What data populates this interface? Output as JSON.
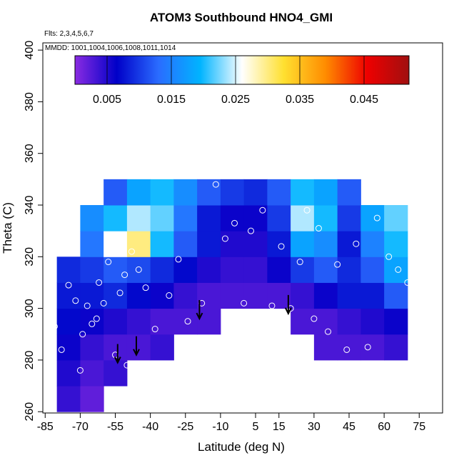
{
  "chart_data": {
    "type": "heatmap",
    "title": "ATOM3 Southbound HNO4_GMI",
    "subtitle": "Flts: 2,3,4,5,6,7",
    "annotation": "MMDD: 1001,1004,1006,1008,1011,1014",
    "x_label": "Latitude (deg N)",
    "y_label": "Theta (C)",
    "xlim": [
      -86,
      85
    ],
    "xticks": [
      -85,
      -70,
      -55,
      -40,
      -25,
      -10,
      5,
      15,
      30,
      45,
      60,
      75
    ],
    "ylim": [
      259.5,
      402.8
    ],
    "yticks": [
      260,
      280,
      300,
      320,
      340,
      360,
      380,
      400
    ],
    "clim": [
      0,
      0.052
    ],
    "cticks": [
      0.005,
      0.015,
      0.025,
      0.035,
      0.045
    ],
    "colormap": [
      "#8a2be2",
      "#0000c8",
      "#2a6cff",
      "#00b4ff",
      "#ffffff",
      "#ffe030",
      "#ff8c00",
      "#ee0000",
      "#a01010"
    ],
    "x_bins": [
      -80,
      -70,
      -60,
      -50,
      -40,
      -30,
      -20,
      -10,
      0,
      10,
      20,
      30,
      40,
      50,
      60,
      70
    ],
    "y_bins": [
      260,
      270,
      280,
      290,
      300,
      310,
      320,
      330,
      340,
      350
    ],
    "values": [
      [
        0.004,
        0.002,
        null,
        null,
        null,
        null,
        null,
        null,
        null,
        null,
        null,
        null,
        null,
        null,
        null
      ],
      [
        0.005,
        0.003,
        0.004,
        null,
        null,
        null,
        null,
        null,
        null,
        null,
        null,
        null,
        null,
        null,
        null
      ],
      [
        0.006,
        0.004,
        0.003,
        0.003,
        0.004,
        null,
        null,
        null,
        null,
        null,
        null,
        0.003,
        0.003,
        0.003,
        0.004
      ],
      [
        0.007,
        0.006,
        0.005,
        0.004,
        0.003,
        0.003,
        0.003,
        null,
        null,
        null,
        0.003,
        0.003,
        0.004,
        0.005,
        0.006
      ],
      [
        0.008,
        0.008,
        0.009,
        0.007,
        0.006,
        0.004,
        0.003,
        0.003,
        0.003,
        0.003,
        0.004,
        0.006,
        0.008,
        0.008,
        0.012
      ],
      [
        0.009,
        0.01,
        0.012,
        0.011,
        0.009,
        0.007,
        0.005,
        0.004,
        0.004,
        0.006,
        0.01,
        0.012,
        0.009,
        0.012,
        0.018
      ],
      [
        null,
        0.014,
        0.026,
        0.03,
        0.02,
        0.012,
        0.008,
        0.005,
        0.005,
        0.008,
        0.018,
        0.016,
        0.008,
        0.015,
        0.02
      ],
      [
        null,
        0.016,
        0.02,
        0.024,
        0.022,
        0.014,
        0.008,
        0.006,
        0.006,
        0.01,
        0.024,
        0.02,
        0.01,
        0.018,
        0.022
      ],
      [
        null,
        null,
        0.012,
        0.018,
        0.02,
        0.016,
        0.012,
        0.01,
        0.009,
        0.012,
        0.02,
        0.018,
        0.012,
        null,
        null
      ]
    ],
    "points": {
      "x": [
        -81,
        -78,
        -75,
        -72,
        -70,
        -69,
        -67,
        -65,
        -63,
        -62,
        -60,
        -58,
        -56,
        -55,
        -53,
        -51,
        -50,
        -48,
        -45,
        -42,
        -38,
        -32,
        -28,
        -24,
        -18,
        -12,
        -8,
        -4,
        0,
        3,
        8,
        12,
        16,
        20,
        24,
        27,
        30,
        32,
        36,
        40,
        44,
        48,
        53,
        57,
        62,
        66,
        70
      ],
      "y": [
        293,
        284,
        309,
        303,
        276,
        290,
        301,
        294,
        296,
        310,
        302,
        318,
        323,
        282,
        306,
        313,
        278,
        322,
        315,
        308,
        292,
        305,
        319,
        295,
        302,
        348,
        327,
        333,
        302,
        330,
        338,
        301,
        324,
        300,
        318,
        338,
        296,
        331,
        291,
        317,
        284,
        325,
        285,
        335,
        320,
        315,
        310
      ]
    },
    "arrows": {
      "x": [
        -54,
        -46,
        -19,
        19
      ],
      "y": [
        279,
        282,
        296,
        298
      ]
    }
  }
}
